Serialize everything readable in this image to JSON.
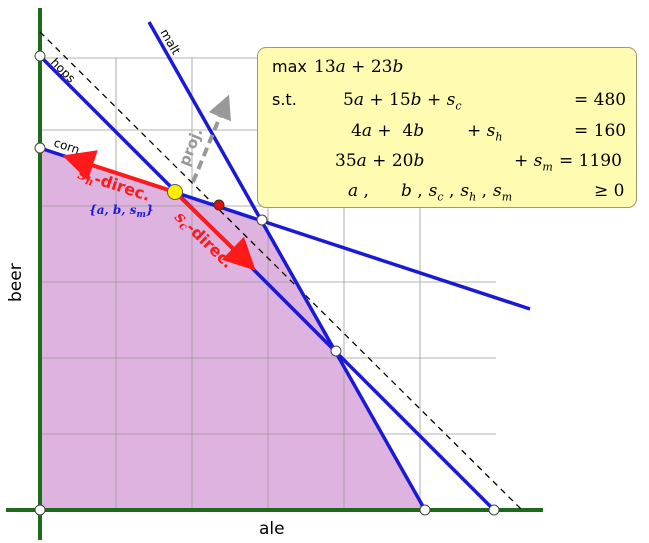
{
  "axes": {
    "x_label": "ale",
    "y_label": "beer"
  },
  "constraint_labels": {
    "hops": "hops",
    "corn": "corn",
    "malt": "malt"
  },
  "annotations": {
    "sh_direction": "s",
    "sh_direction_sub": "h",
    "sh_direction_rest": "-direc.",
    "sc_direction": "s",
    "sc_direction_sub": "c",
    "sc_direction_rest": "-direc.",
    "basis_set": "{a, b, s",
    "basis_set_sub": "m",
    "basis_set_end": "}",
    "projection": "proj."
  },
  "lp": {
    "max_keyword": "max",
    "st_keyword": "s.t.",
    "objective": [
      "13",
      "a",
      " + 23",
      "b"
    ],
    "c1": {
      "lhs": [
        "5",
        "a",
        " + 15",
        "b",
        " + ",
        "s",
        "c"
      ],
      "rhs": "= 480"
    },
    "c2": {
      "lhs": [
        "4",
        "a",
        " +  4",
        "b"
      ],
      "slack": [
        "+ ",
        "s",
        "h"
      ],
      "rhs": "= 160"
    },
    "c3": {
      "lhs": [
        "35",
        "a",
        " + 20",
        "b"
      ],
      "slack": [
        "+ ",
        "s",
        "m"
      ],
      "rhs": "= 1190"
    },
    "c4": {
      "vars": [
        "a",
        " ,",
        "b",
        " ,",
        "s",
        "c",
        " ,",
        "s",
        "h",
        " ,",
        "s",
        "m"
      ],
      "rhs": "≥ 0"
    }
  },
  "colors": {
    "feasible_region": "#dfb3df",
    "constraint_line": "#1a1ad6",
    "axis": "#1b6b1b",
    "direction_arrow": "#ff1a1a",
    "projection_arrow": "#999999",
    "current_vertex": "#ffee00",
    "next_vertex": "#dd1111",
    "box_fill": "#fffbb0"
  }
}
